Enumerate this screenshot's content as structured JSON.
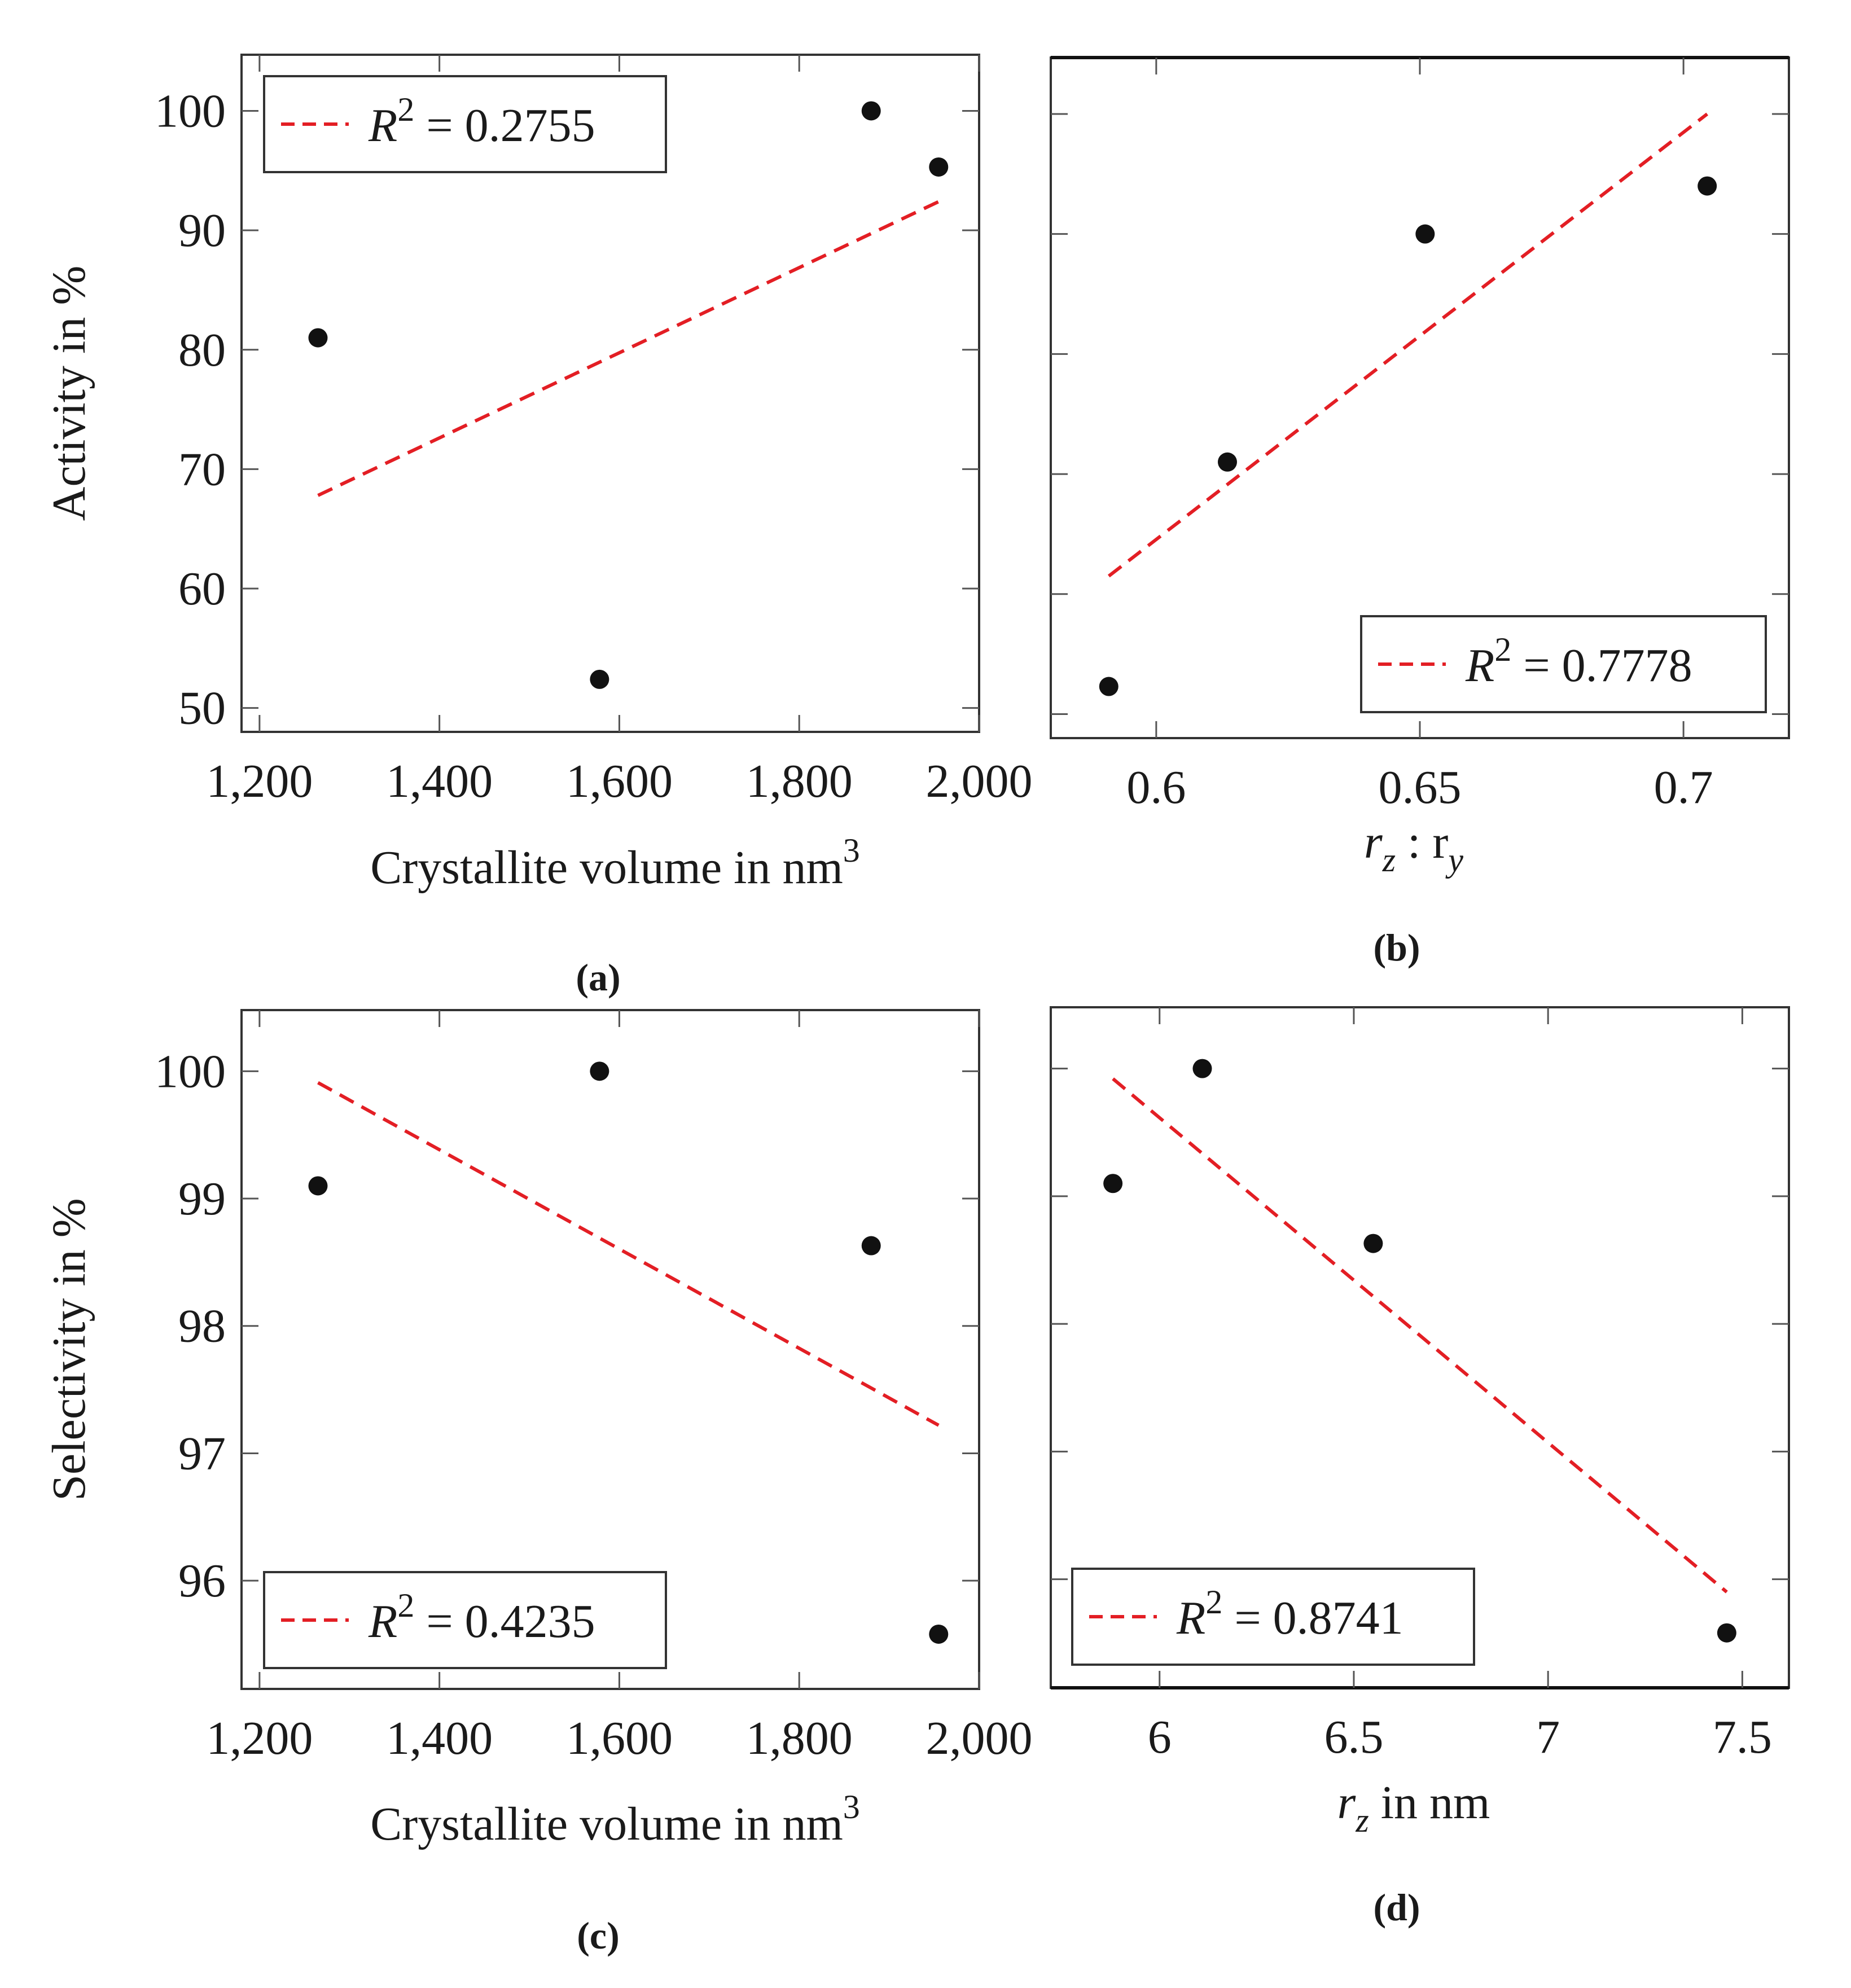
{
  "chart_data": [
    {
      "type": "scatter",
      "panel_label": "(a)",
      "xlabel": "Crystallite volume in nm",
      "xlabel_sup": "3",
      "ylabel": "Activity in %",
      "xlim": [
        1180,
        2000
      ],
      "ylim": [
        48,
        104.7
      ],
      "xticks": [
        1200,
        1400,
        1600,
        1800,
        2000
      ],
      "xtick_labels": [
        "1,200",
        "1,400",
        "1,600",
        "1,800",
        "2,000"
      ],
      "yticks": [
        50,
        60,
        70,
        80,
        90,
        100
      ],
      "ytick_labels": [
        "50",
        "60",
        "70",
        "80",
        "90",
        "100"
      ],
      "series": [
        {
          "name": "data",
          "x": [
            1265,
            1578,
            1880,
            1955
          ],
          "y": [
            81,
            52.4,
            100,
            95.3
          ]
        }
      ],
      "fit": {
        "x": [
          1265,
          1955
        ],
        "y": [
          67.8,
          92.4
        ],
        "r2": "0.2755",
        "style": "dashed"
      },
      "legend": {
        "label_pre": "R",
        "label_sup": "2",
        "label_post": " = 0.2755",
        "position": "top-left"
      }
    },
    {
      "type": "scatter",
      "panel_label": "(b)",
      "xlabel": "r",
      "xlabel_sub1": "z",
      "xlabel_mid": " : r",
      "xlabel_sub2": "y",
      "xlim": [
        0.58,
        0.72
      ],
      "ylim": [
        48,
        104.7
      ],
      "xticks": [
        0.6,
        0.65,
        0.7
      ],
      "xtick_labels": [
        "0.6",
        "0.65",
        "0.7"
      ],
      "yticks": [
        50,
        60,
        70,
        80,
        90,
        100
      ],
      "series": [
        {
          "name": "data",
          "x": [
            0.591,
            0.6135,
            0.651,
            0.7045
          ],
          "y": [
            52.3,
            71.0,
            90.0,
            94.0
          ]
        }
      ],
      "fit": {
        "x": [
          0.591,
          0.7045
        ],
        "y": [
          61.5,
          100
        ],
        "r2": "0.7778",
        "style": "dashed"
      },
      "legend": {
        "label_pre": "R",
        "label_sup": "2",
        "label_post": " = 0.7778",
        "position": "bottom-right"
      }
    },
    {
      "type": "scatter",
      "panel_label": "(c)",
      "xlabel": "Crystallite volume in nm",
      "xlabel_sup": "3",
      "ylabel": "Selectivity in %",
      "xlim": [
        1180,
        2000
      ],
      "ylim": [
        95.15,
        100.48
      ],
      "xticks": [
        1200,
        1400,
        1600,
        1800,
        2000
      ],
      "xtick_labels": [
        "1,200",
        "1,400",
        "1,600",
        "1,800",
        "2,000"
      ],
      "yticks": [
        96,
        97,
        98,
        99,
        100
      ],
      "ytick_labels": [
        "96",
        "97",
        "98",
        "99",
        "100"
      ],
      "series": [
        {
          "name": "data",
          "x": [
            1265,
            1578,
            1880,
            1955
          ],
          "y": [
            99.1,
            100,
            98.63,
            95.58
          ]
        }
      ],
      "fit": {
        "x": [
          1265,
          1955
        ],
        "y": [
          99.91,
          97.22
        ],
        "r2": "0.4235",
        "style": "dashed"
      },
      "legend": {
        "label_pre": "R",
        "label_sup": "2",
        "label_post": " = 0.4235",
        "position": "bottom-left"
      }
    },
    {
      "type": "scatter",
      "panel_label": "(d)",
      "xlabel": "r",
      "xlabel_sub1": "z",
      "xlabel_mid": " in nm",
      "xlim": [
        5.72,
        7.62
      ],
      "ylim": [
        95.15,
        100.48
      ],
      "xticks": [
        6,
        6.5,
        7,
        7.5
      ],
      "xtick_labels": [
        "6",
        "6.5",
        "7",
        "7.5"
      ],
      "yticks": [
        96,
        97,
        98,
        99,
        100
      ],
      "series": [
        {
          "name": "data",
          "x": [
            5.88,
            6.11,
            6.55,
            7.46
          ],
          "y": [
            99.1,
            100,
            98.63,
            95.58
          ]
        }
      ],
      "fit": {
        "x": [
          5.88,
          7.46
        ],
        "y": [
          99.92,
          95.9
        ],
        "r2": "0.8741",
        "style": "dashed"
      },
      "legend": {
        "label_pre": "R",
        "label_sup": "2",
        "label_post": " = 0.8741",
        "position": "bottom-left"
      }
    }
  ]
}
